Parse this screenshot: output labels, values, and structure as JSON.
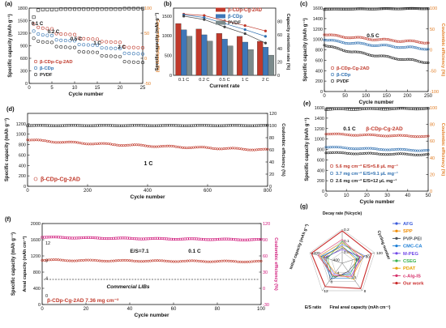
{
  "colors": {
    "red": "#c0392b",
    "blue": "#2e6fb0",
    "black": "#222222",
    "orange": "#e07b22",
    "magenta": "#d0187a",
    "gray": "#777777"
  },
  "chart_data": [
    {
      "panel": "(a)",
      "type": "scatter",
      "xlabel": "Cycle number",
      "ylabel": "Specific capacity (mAh g⁻¹)",
      "ylabel_right": "Coulombic efficiency (%)",
      "xlim": [
        0,
        25
      ],
      "ylim": [
        0,
        1800
      ],
      "y2lim": [
        -50,
        100
      ],
      "xticks": [
        0,
        5,
        10,
        15,
        20,
        25
      ],
      "yticks": [
        0,
        300,
        600,
        900,
        1200,
        1500,
        1800
      ],
      "y2ticks": [
        -50,
        0,
        50,
        100
      ],
      "annotations": [
        "0.1 C",
        "0.2 C",
        "0.5 C",
        "1 C",
        "2 C"
      ],
      "legend": [
        "β-CDp-Cg-2AD",
        "β-CDp",
        "PVDF"
      ],
      "series": [
        {
          "name": "β-CDp-Cg-2AD",
          "values": [
            1420,
            1340,
            1320,
            1310,
            1305,
            1190,
            1180,
            1175,
            1170,
            1168,
            1080,
            1070,
            1065,
            1060,
            1058,
            1000,
            995,
            990,
            985,
            982,
            870,
            860,
            858,
            855,
            852
          ]
        },
        {
          "name": "β-CDp",
          "values": [
            1250,
            1180,
            1160,
            1150,
            1145,
            1040,
            1030,
            1025,
            1020,
            1018,
            930,
            925,
            920,
            915,
            912,
            850,
            845,
            840,
            836,
            832,
            720,
            715,
            712,
            708,
            705
          ]
        },
        {
          "name": "PVDF",
          "values": [
            1080,
            1010,
            990,
            985,
            980,
            880,
            870,
            865,
            860,
            858,
            760,
            752,
            748,
            744,
            740,
            660,
            655,
            650,
            646,
            642,
            520,
            512,
            508,
            505,
            500
          ]
        },
        {
          "name": "CE",
          "values": [
            82,
            96,
            97,
            97,
            97,
            97,
            98,
            98,
            98,
            98,
            98,
            98,
            98,
            98,
            98,
            98,
            98,
            98,
            98,
            98,
            99,
            99,
            99,
            99,
            99
          ]
        }
      ]
    },
    {
      "panel": "(b)",
      "type": "bar",
      "xlabel": "Current rate",
      "ylabel": "Specific capacity (mAh g⁻¹)",
      "ylabel_right": "Capacity retention rate (%)",
      "categories": [
        "0.1 C",
        "0.2 C",
        "0.5 C",
        "1 C",
        "2 C"
      ],
      "ylim": [
        0,
        1700
      ],
      "y2lim": [
        0,
        100
      ],
      "yticks": [
        0,
        500,
        1000,
        1500
      ],
      "y2ticks": [
        0,
        20,
        40,
        60,
        80
      ],
      "legend": [
        "β-CDp-Cg-2AD",
        "β-CDp",
        "PVDF"
      ],
      "series": [
        {
          "name": "β-CDp-Cg-2AD",
          "values": [
            1310,
            1170,
            1060,
            985,
            860
          ]
        },
        {
          "name": "β-CDp",
          "values": [
            1150,
            1025,
            915,
            840,
            710
          ]
        },
        {
          "name": "PVDF",
          "values": [
            990,
            865,
            745,
            650,
            510
          ]
        }
      ],
      "retention": [
        {
          "name": "β-CDp-Cg-2AD",
          "values": [
            91,
            89,
            81,
            74,
            66
          ]
        },
        {
          "name": "β-CDp",
          "values": [
            90,
            86,
            77,
            68,
            58
          ]
        },
        {
          "name": "PVDF",
          "values": [
            88,
            83,
            72,
            62,
            48
          ]
        }
      ]
    },
    {
      "panel": "(c)",
      "type": "scatter",
      "xlabel": "Cycle number",
      "ylabel": "Specific capacity (mAh g⁻¹)",
      "ylabel_right": "Coulombic efficiency (%)",
      "xlim": [
        0,
        250
      ],
      "ylim": [
        0,
        1600
      ],
      "y2lim": [
        -100,
        100
      ],
      "xticks": [
        0,
        50,
        100,
        150,
        200,
        250
      ],
      "yticks": [
        0,
        200,
        400,
        600,
        800,
        1000,
        1200,
        1400,
        1600
      ],
      "y2ticks": [
        -100,
        -50,
        0,
        50,
        100
      ],
      "annotations": [
        "0.5 C"
      ],
      "legend": [
        "β-CDp-Cg-2AD",
        "β-CDp",
        "PVDF"
      ],
      "series": [
        {
          "name": "β-CDp-Cg-2AD",
          "start": 1100,
          "end": 940
        },
        {
          "name": "β-CDp",
          "start": 1000,
          "end": 820
        },
        {
          "name": "PVDF",
          "start": 900,
          "end": 560
        },
        {
          "name": "CE",
          "start": 97,
          "end": 99
        }
      ]
    },
    {
      "panel": "(d)",
      "type": "scatter",
      "xlabel": "Cycle number",
      "ylabel": "Specific capacity (mAh g⁻¹)",
      "ylabel_right": "Coulombic efficiency (%)",
      "xlim": [
        0,
        800
      ],
      "ylim": [
        0,
        1400
      ],
      "y2lim": [
        0,
        120
      ],
      "xticks": [
        0,
        200,
        400,
        600,
        800
      ],
      "yticks": [
        0,
        200,
        400,
        600,
        800,
        1000,
        1200
      ],
      "y2ticks": [
        0,
        20,
        40,
        60,
        80,
        100,
        120
      ],
      "annotations": [
        "1 C"
      ],
      "legend": [
        "β-CDp-Cg-2AD"
      ],
      "series": [
        {
          "name": "β-CDp-Cg-2AD",
          "start": 900,
          "end": 700
        },
        {
          "name": "CE",
          "start": 100,
          "end": 100
        }
      ]
    },
    {
      "panel": "(e)",
      "type": "scatter",
      "xlabel": "Cycle number",
      "ylabel": "Specific capacity (mAh g⁻¹)",
      "ylabel_right": "Coulombic efficiency (%)",
      "xlim": [
        0,
        50
      ],
      "ylim": [
        0,
        1600
      ],
      "y2lim": [
        0,
        100
      ],
      "xticks": [
        0,
        10,
        20,
        30,
        40,
        50
      ],
      "yticks": [
        0,
        200,
        400,
        600,
        800,
        1000,
        1200,
        1400,
        1600
      ],
      "y2ticks": [
        0,
        20,
        40,
        60,
        80,
        100
      ],
      "annotations": [
        "0.1 C",
        "β-CDp-Cg-2AD"
      ],
      "legend": [
        "5.6 mg cm⁻² E/S=5.8 μL mg⁻¹",
        "3.7 mg cm⁻² E/S=9.1 μL mg⁻¹",
        "2.6 mg cm⁻² E/S=12 μL mg⁻¹"
      ],
      "series": [
        {
          "name": "5.6 mg cm⁻² E/S=5.8 μL mg⁻¹",
          "start": 1100,
          "end": 1050
        },
        {
          "name": "3.7 mg cm⁻² E/S=9.1 μL mg⁻¹",
          "start": 850,
          "end": 780
        },
        {
          "name": "2.6 mg cm⁻² E/S=12 μL mg⁻¹",
          "start": 740,
          "end": 700
        },
        {
          "name": "CE",
          "start": 98,
          "end": 99
        }
      ]
    },
    {
      "panel": "(f)",
      "type": "scatter",
      "xlabel": "Cycle number",
      "ylabel": "Specific capacity (mAh g⁻¹)",
      "ylabel_inner": "Areal capacity (mAh cm⁻²)",
      "ylabel_right": "Coulombic efficiency (%)",
      "xlim": [
        0,
        100
      ],
      "ylim": [
        0,
        2000
      ],
      "y2lim": [
        -30,
        120
      ],
      "xticks": [
        0,
        20,
        40,
        60,
        80,
        100
      ],
      "yticks": [
        0,
        400,
        800,
        1200,
        1600,
        2000
      ],
      "y_inner_ticks": [
        0,
        4,
        8,
        12
      ],
      "y2ticks": [
        -30,
        0,
        30,
        60,
        90,
        120
      ],
      "annotations": [
        "E/S=7.1",
        "0.1 C",
        "Commercial LIBs",
        "β-CDp-Cg-2AD  7.36 mg cm⁻²"
      ],
      "series": [
        {
          "name": "Areal capacity",
          "start": 1100,
          "end": 1060
        },
        {
          "name": "CE",
          "start": 95,
          "end": 90
        },
        {
          "name": "Commercial LIBs",
          "value": 620
        }
      ]
    },
    {
      "panel": "(g)",
      "type": "radar",
      "axes": [
        "Decay rate (%/cycle)",
        "Cycling number",
        "Final areal capacity (mAh cm⁻²)",
        "E/S ratio",
        "Initial capacity (mAh g⁻¹)"
      ],
      "axis_ticks": [
        [
          "0.0",
          "0.1",
          "0.2"
        ],
        [
          "40",
          "80",
          "120"
        ],
        [
          "4",
          "8"
        ],
        [
          "4",
          "8",
          "12"
        ],
        [
          "400",
          "800",
          "1200"
        ]
      ],
      "legend": [
        "AFG",
        "SPP",
        "PVP-PEI",
        "CMC-CA",
        "M-PEG",
        "CSEG",
        "PDAT",
        "c-Alg-IS",
        "Our work"
      ],
      "series": [
        {
          "name": "AFG",
          "color": "#3b5bdb",
          "values": [
            0.55,
            0.7,
            0.35,
            0.5,
            0.6
          ]
        },
        {
          "name": "SPP",
          "color": "#f08c00",
          "values": [
            0.6,
            0.65,
            0.5,
            0.45,
            0.7
          ]
        },
        {
          "name": "PVP-PEI",
          "color": "#495057",
          "values": [
            0.45,
            0.55,
            0.3,
            0.6,
            0.5
          ]
        },
        {
          "name": "CMC-CA",
          "color": "#1c7ed6",
          "values": [
            0.5,
            0.45,
            0.55,
            0.55,
            0.65
          ]
        },
        {
          "name": "M-PEG",
          "color": "#7048e8",
          "values": [
            0.4,
            0.6,
            0.45,
            0.4,
            0.55
          ]
        },
        {
          "name": "CSEG",
          "color": "#37b24d",
          "values": [
            0.65,
            0.5,
            0.4,
            0.5,
            0.45
          ]
        },
        {
          "name": "PDAT",
          "color": "#e6a100",
          "values": [
            0.5,
            0.4,
            0.6,
            0.35,
            0.6
          ]
        },
        {
          "name": "c-Alg-IS",
          "color": "#d6336c",
          "values": [
            0.7,
            0.55,
            0.5,
            0.45,
            0.75
          ]
        },
        {
          "name": "Our work",
          "color": "#c92a2a",
          "values": [
            0.95,
            0.9,
            0.92,
            0.85,
            0.95
          ]
        }
      ]
    }
  ]
}
